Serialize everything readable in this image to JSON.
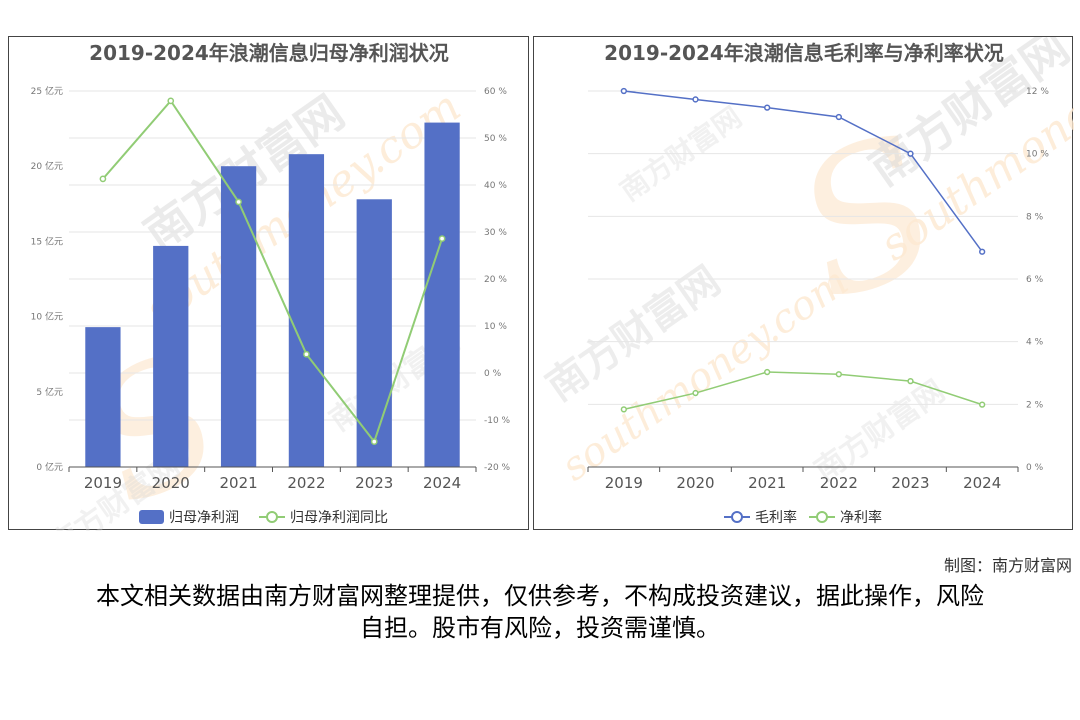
{
  "watermark": {
    "brand": "南方财富网",
    "domain": "southmoney.com"
  },
  "credit": "制图：南方财富网",
  "disclaimer": "本文相关数据由南方财富网整理提供，仅供参考，不构成投资建议，据此操作，风险自担。股市有风险，投资需谨慎。",
  "chart_data": [
    {
      "type": "bar",
      "title": "2019-2024年浪潮信息归母净利润状况",
      "categories": [
        "2019",
        "2020",
        "2021",
        "2022",
        "2023",
        "2024"
      ],
      "series": [
        {
          "name": "归母净利润",
          "type": "bar",
          "axis": "left",
          "color": "#5470c6",
          "values": [
            9.3,
            14.7,
            20.0,
            20.8,
            17.8,
            22.9
          ]
        },
        {
          "name": "归母净利润同比",
          "type": "line",
          "axis": "right",
          "color": "#91cc75",
          "values": [
            41.3,
            57.9,
            36.4,
            4.0,
            -14.6,
            28.6
          ]
        }
      ],
      "ylim_left": [
        0,
        25
      ],
      "yticks_left": [
        "0 亿元",
        "5 亿元",
        "10 亿元",
        "15 亿元",
        "20 亿元",
        "25 亿元"
      ],
      "ylim_right": [
        -20,
        60
      ],
      "yticks_right": [
        "-20 %",
        "-10 %",
        "0 %",
        "10 %",
        "20 %",
        "30 %",
        "40 %",
        "50 %",
        "60 %"
      ],
      "legend": "bottom",
      "grid": true
    },
    {
      "type": "line",
      "title": "2019-2024年浪潮信息毛利率与净利率状况",
      "categories": [
        "2019",
        "2020",
        "2021",
        "2022",
        "2023",
        "2024"
      ],
      "series": [
        {
          "name": "毛利率",
          "color": "#5470c6",
          "values": [
            12.0,
            11.73,
            11.47,
            11.17,
            10.0,
            6.87
          ]
        },
        {
          "name": "净利率",
          "color": "#91cc75",
          "values": [
            1.84,
            2.36,
            3.03,
            2.96,
            2.74,
            1.99
          ]
        }
      ],
      "ylim_right": [
        0,
        12
      ],
      "yticks_right": [
        "0 %",
        "2 %",
        "4 %",
        "6 %",
        "8 %",
        "10 %",
        "12 %"
      ],
      "legend": "bottom",
      "grid": true
    }
  ]
}
